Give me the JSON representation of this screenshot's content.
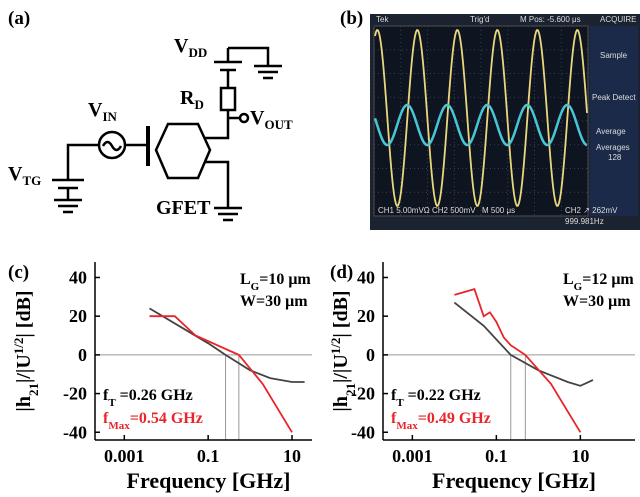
{
  "panels": [
    "(a)",
    "(b)",
    "(c)",
    "(d)"
  ],
  "circuit": {
    "vdd": [
      "V",
      "DD"
    ],
    "rd": [
      "R",
      "D"
    ],
    "vin": [
      "V",
      "IN"
    ],
    "vout": [
      "V",
      "OUT"
    ],
    "vtg": [
      "V",
      "TG"
    ],
    "device": "GFET"
  },
  "scope": {
    "header": [
      "Tek",
      "Trig'd",
      "M Pos: -5.600 μs",
      "ACQUIRE"
    ],
    "menu": [
      "Sample",
      "Peak Detect",
      "Average",
      "Averages",
      "128"
    ],
    "footer": [
      "CH1 5.00mVΩ",
      "CH2 500mV",
      "M 500 μs",
      "CH2 ↗ 262mV",
      "999.981Hz"
    ]
  },
  "chart_data": [
    {
      "type": "line",
      "xlabel": "Frequency [GHz]",
      "ylabel": [
        "|h",
        "21",
        "|/|U",
        "1/2",
        "| [dB]"
      ],
      "xscale": "log",
      "xlim": [
        0.0002,
        30
      ],
      "ylim": [
        -44,
        48
      ],
      "xticks": [
        0.001,
        0.1,
        10
      ],
      "yticks": [
        -40,
        -20,
        0,
        20,
        40
      ],
      "hline": 0,
      "vlines": [
        0.26,
        0.54
      ],
      "refcolor": "#999999",
      "annotations": [
        {
          "parts": [
            "L",
            "G",
            "=10 μm"
          ],
          "color": "#000000"
        },
        {
          "parts": [
            "W=30 μm"
          ],
          "color": "#000000"
        },
        {
          "parts": [
            "f",
            "T",
            " =0.26 GHz"
          ],
          "color": "#000000"
        },
        {
          "parts": [
            "f",
            "Max",
            "=0.54 GHz"
          ],
          "color": "#e8262a"
        }
      ],
      "series": [
        {
          "color": "#444444",
          "x": [
            0.004,
            0.02,
            0.1,
            0.26,
            1,
            3,
            10,
            20
          ],
          "values": [
            24,
            15,
            6,
            0,
            -8,
            -12,
            -14,
            -14
          ]
        },
        {
          "color": "#e8262a",
          "x": [
            0.004,
            0.016,
            0.05,
            0.54,
            2,
            10
          ],
          "values": [
            20,
            20,
            10,
            0,
            -15,
            -40
          ]
        }
      ]
    },
    {
      "type": "line",
      "xlabel": "Frequency [GHz]",
      "ylabel": [
        "|h",
        "21",
        "|/|U",
        "1/2",
        "| [dB]"
      ],
      "xscale": "log",
      "xlim": [
        0.0002,
        200
      ],
      "ylim": [
        -44,
        48
      ],
      "xticks": [
        0.001,
        0.1,
        10
      ],
      "yticks": [
        -40,
        -20,
        0,
        20,
        40
      ],
      "hline": 0,
      "vlines": [
        0.22,
        0.49
      ],
      "refcolor": "#999999",
      "annotations": [
        {
          "parts": [
            "L",
            "G",
            "=12 μm"
          ],
          "color": "#000000"
        },
        {
          "parts": [
            "W=30 μm"
          ],
          "color": "#000000"
        },
        {
          "parts": [
            "f",
            "T",
            " =0.22 GHz"
          ],
          "color": "#000000"
        },
        {
          "parts": [
            "f",
            "Max",
            "=0.49 GHz"
          ],
          "color": "#e8262a"
        }
      ],
      "series": [
        {
          "color": "#444444",
          "x": [
            0.01,
            0.05,
            0.22,
            1,
            5,
            10,
            20
          ],
          "values": [
            27,
            15,
            0,
            -8,
            -14,
            -16,
            -13
          ]
        },
        {
          "color": "#e8262a",
          "x": [
            0.01,
            0.03,
            0.05,
            0.07,
            0.1,
            0.15,
            0.22,
            0.49,
            2,
            10
          ],
          "values": [
            31,
            34,
            20,
            22,
            17,
            9,
            5,
            0,
            -15,
            -40
          ]
        }
      ]
    }
  ]
}
